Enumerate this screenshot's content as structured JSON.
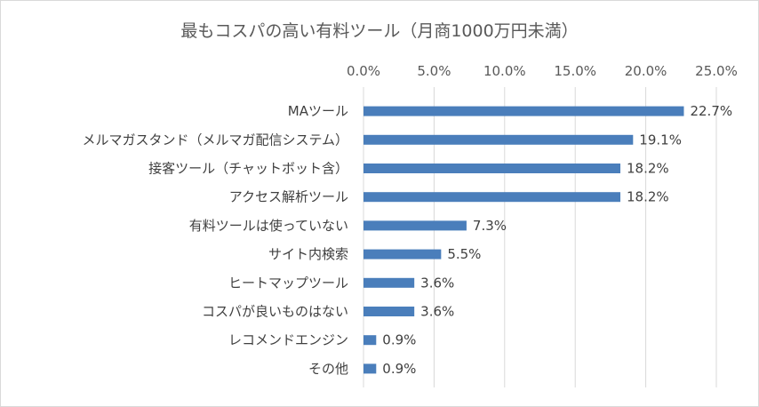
{
  "chart_data": {
    "type": "bar",
    "orientation": "horizontal",
    "title": "最もコスパの高い有料ツール（月商1000万円未満）",
    "xlabel": "",
    "ylabel": "",
    "xlim": [
      0,
      25
    ],
    "x_ticks": [
      "0.0%",
      "5.0%",
      "10.0%",
      "15.0%",
      "20.0%",
      "25.0%"
    ],
    "x_axis_position": "top",
    "grid": true,
    "legend": "none",
    "bar_color": "#4a7ebb",
    "categories": [
      "MAツール",
      "メルマガスタンド（メルマガ配信システム）",
      "接客ツール（チャットボット含）",
      "アクセス解析ツール",
      "有料ツールは使っていない",
      "サイト内検索",
      "ヒートマップツール",
      "コスパが良いものはない",
      "レコメンドエンジン",
      "その他"
    ],
    "values": [
      22.7,
      19.1,
      18.2,
      18.2,
      7.3,
      5.5,
      3.6,
      3.6,
      0.9,
      0.9
    ],
    "value_labels": [
      "22.7%",
      "19.1%",
      "18.2%",
      "18.2%",
      "7.3%",
      "5.5%",
      "3.6%",
      "3.6%",
      "0.9%",
      "0.9%"
    ]
  }
}
